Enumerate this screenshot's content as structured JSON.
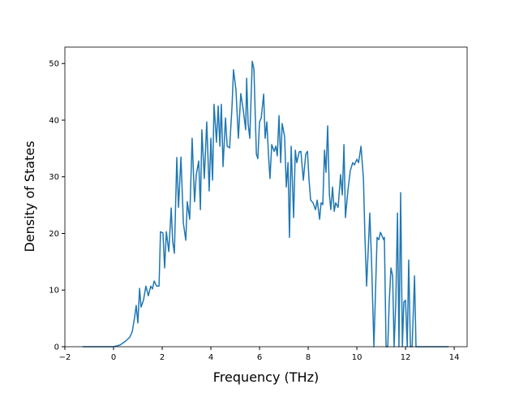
{
  "chart_data": {
    "type": "line",
    "xlabel": "Frequency (THz)",
    "ylabel": "Density of States",
    "color": "#1f77b4",
    "x": [
      -1.27,
      0,
      0.27,
      0.5,
      0.67,
      0.77,
      0.87,
      0.93,
      1.0,
      1.07,
      1.13,
      1.23,
      1.33,
      1.43,
      1.53,
      1.6,
      1.67,
      1.77,
      1.87,
      1.93,
      2.03,
      2.1,
      2.17,
      2.27,
      2.37,
      2.43,
      2.5,
      2.6,
      2.67,
      2.77,
      2.87,
      2.97,
      3.03,
      3.13,
      3.23,
      3.33,
      3.4,
      3.5,
      3.57,
      3.63,
      3.73,
      3.83,
      3.93,
      4.0,
      4.07,
      4.13,
      4.23,
      4.3,
      4.37,
      4.43,
      4.5,
      4.6,
      4.67,
      4.77,
      4.87,
      4.93,
      5.03,
      5.13,
      5.23,
      5.33,
      5.43,
      5.47,
      5.53,
      5.6,
      5.7,
      5.77,
      5.87,
      5.93,
      6.0,
      6.07,
      6.17,
      6.23,
      6.3,
      6.37,
      6.43,
      6.5,
      6.6,
      6.67,
      6.73,
      6.8,
      6.87,
      6.93,
      7.03,
      7.1,
      7.17,
      7.23,
      7.3,
      7.4,
      7.47,
      7.53,
      7.63,
      7.7,
      7.8,
      7.9,
      7.97,
      8.03,
      8.1,
      8.2,
      8.3,
      8.37,
      8.47,
      8.53,
      8.6,
      8.67,
      8.73,
      8.8,
      8.87,
      8.93,
      9.0,
      9.07,
      9.13,
      9.23,
      9.33,
      9.4,
      9.47,
      9.53,
      9.63,
      9.73,
      9.83,
      9.9,
      10.0,
      10.07,
      10.17,
      10.27,
      10.33,
      10.4,
      10.47,
      10.53,
      10.6,
      10.7,
      10.77,
      10.83,
      10.9,
      10.97,
      11.03,
      11.1,
      11.13,
      11.2,
      11.27,
      11.33,
      11.4,
      11.47,
      11.53,
      11.6,
      11.67,
      11.73,
      11.8,
      11.87,
      11.93,
      12.0,
      12.07,
      12.13,
      12.2,
      12.27,
      12.37,
      12.43,
      13.77
    ],
    "values": [
      0,
      0,
      0.3,
      1,
      1.7,
      2.7,
      5.3,
      7.3,
      4.2,
      10.3,
      7,
      8.2,
      10.7,
      9,
      10.7,
      10.2,
      11.6,
      10.7,
      10.7,
      20.3,
      20.1,
      13.9,
      20.3,
      16.8,
      24.5,
      18.6,
      16.5,
      33.4,
      24.6,
      33.5,
      21.8,
      18.8,
      25.6,
      22.5,
      36.8,
      25.6,
      30.4,
      32.8,
      24.2,
      38.3,
      29.7,
      39.7,
      27.5,
      36.8,
      29.4,
      42.8,
      36.1,
      42.5,
      35.4,
      42.8,
      31.8,
      40.4,
      35.4,
      35.1,
      42.5,
      48.9,
      45.4,
      36.8,
      44.7,
      41.8,
      38.3,
      47.4,
      39.4,
      36.8,
      50.4,
      49,
      34,
      33.2,
      39.7,
      40.4,
      44.6,
      36.8,
      39.7,
      33.7,
      29.7,
      35.7,
      34.5,
      35.4,
      33.7,
      40.8,
      32.5,
      39.4,
      37.1,
      28.2,
      32.5,
      19.3,
      35.4,
      22.8,
      34.7,
      32.5,
      34.4,
      34.5,
      29.4,
      34,
      34.5,
      29.7,
      25.9,
      25.4,
      24.2,
      25.9,
      22.5,
      25.4,
      25.1,
      34.7,
      30.8,
      39,
      26.8,
      24.2,
      28.2,
      23.9,
      25.4,
      24.6,
      30.4,
      26.8,
      35.7,
      22.8,
      27.5,
      31.1,
      32.5,
      32.1,
      33.1,
      32.5,
      35.4,
      29.7,
      19.6,
      10.7,
      17.5,
      23.6,
      15.6,
      0,
      10.3,
      19.3,
      18.9,
      20.2,
      19.6,
      18.9,
      19.3,
      0,
      0,
      7.9,
      13.9,
      12.5,
      0,
      7.9,
      23.6,
      0,
      27.2,
      0,
      7.9,
      8.2,
      0,
      15.3,
      0,
      0,
      12.5,
      0,
      0
    ],
    "xlim": [
      -2,
      14.53
    ],
    "ylim": [
      0,
      52.9
    ],
    "xticks": [
      {
        "value": -2,
        "label": "−2"
      },
      0,
      2,
      4,
      6,
      8,
      10,
      12,
      14
    ],
    "yticks": [
      0,
      10,
      20,
      30,
      40,
      50
    ],
    "grid": false
  }
}
